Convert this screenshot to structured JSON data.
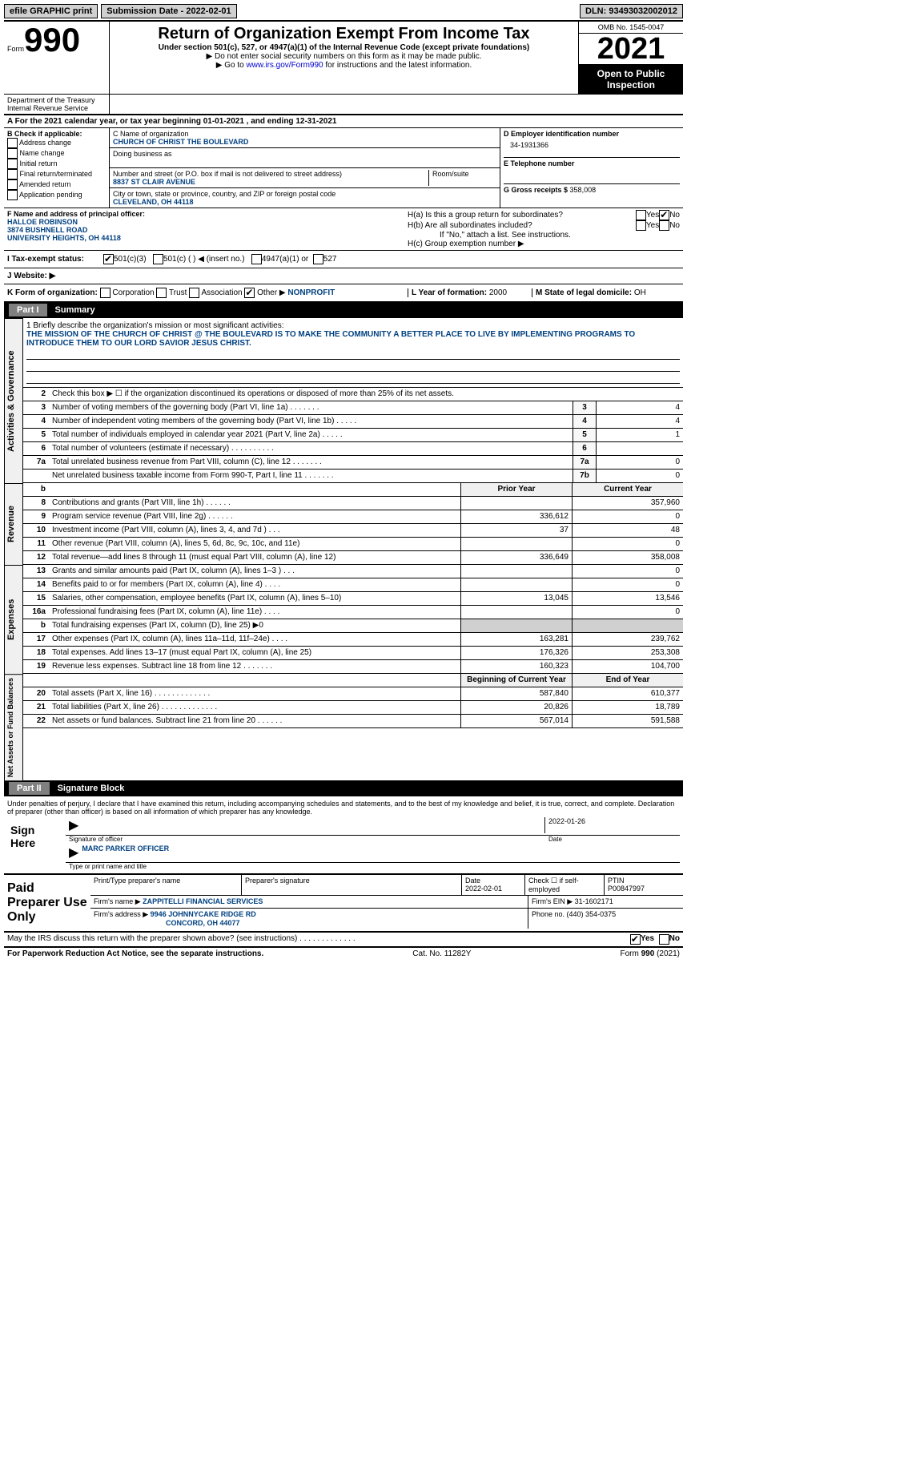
{
  "topbar": {
    "efile": "efile GRAPHIC print",
    "submission_label": "Submission Date - ",
    "submission_date": "2022-02-01",
    "dln_label": "DLN: ",
    "dln": "93493032002012"
  },
  "header": {
    "form_label": "Form",
    "form_number": "990",
    "title": "Return of Organization Exempt From Income Tax",
    "subtitle1": "Under section 501(c), 527, or 4947(a)(1) of the Internal Revenue Code (except private foundations)",
    "subtitle2": "▶ Do not enter social security numbers on this form as it may be made public.",
    "goto": "▶ Go to ",
    "goto_link": "www.irs.gov/Form990",
    "goto_rest": " for instructions and the latest information.",
    "omb": "OMB No. 1545-0047",
    "year": "2021",
    "open_public": "Open to Public Inspection",
    "dept": "Department of the Treasury\nInternal Revenue Service"
  },
  "lineA": "A For the 2021 calendar year, or tax year beginning 01-01-2021    , and ending 12-31-2021",
  "B": {
    "header": "B Check if applicable:",
    "opts": [
      "Address change",
      "Name change",
      "Initial return",
      "Final return/terminated",
      "Amended return",
      "Application pending"
    ]
  },
  "C": {
    "name_label": "C Name of organization",
    "name": "CHURCH OF CHRIST THE BOULEVARD",
    "dba_label": "Doing business as",
    "street_label": "Number and street (or P.O. box if mail is not delivered to street address)",
    "room_label": "Room/suite",
    "street": "8837 ST CLAIR AVENUE",
    "city_label": "City or town, state or province, country, and ZIP or foreign postal code",
    "city": "CLEVELAND, OH  44118"
  },
  "D": {
    "ein_label": "D Employer identification number",
    "ein": "34-1931366",
    "phone_label": "E Telephone number",
    "gross_label": "G Gross receipts $ ",
    "gross": "358,008"
  },
  "F": {
    "label": "F  Name and address of principal officer:",
    "name": "HALLOE ROBINSON",
    "addr1": "3874 BUSHNELL ROAD",
    "addr2": "UNIVERSITY HEIGHTS, OH  44118"
  },
  "H": {
    "a": "H(a)  Is this a group return for subordinates?",
    "b": "H(b)  Are all subordinates included?",
    "note": "If \"No,\" attach a list. See instructions.",
    "c": "H(c)  Group exemption number ▶",
    "yes": "Yes",
    "no": "No"
  },
  "I": {
    "label": "I    Tax-exempt status:",
    "opt1": "501(c)(3)",
    "opt2": "501(c) (   ) ◀ (insert no.)",
    "opt3": "4947(a)(1) or",
    "opt4": "527"
  },
  "J": {
    "label": "J   Website: ▶"
  },
  "K": {
    "label": "K Form of organization:",
    "opts": [
      "Corporation",
      "Trust",
      "Association",
      "Other ▶"
    ],
    "other_val": "NONPROFIT",
    "L": "L Year of formation: ",
    "L_val": "2000",
    "M": "M State of legal domicile: ",
    "M_val": "OH"
  },
  "part1": {
    "label": "Part I",
    "title": "Summary"
  },
  "summary": {
    "line1_label": "1   Briefly describe the organization's mission or most significant activities:",
    "mission": "THE MISSION OF THE CHURCH OF CHRIST @ THE BOULEVARD IS TO MAKE THE COMMUNITY A BETTER PLACE TO LIVE BY IMPLEMENTING PROGRAMS TO INTRODUCE THEM TO OUR LORD SAVIOR JESUS CHRIST.",
    "line2": "Check this box ▶ ☐  if the organization discontinued its operations or disposed of more than 25% of its net assets.",
    "rows_gov": [
      {
        "n": "3",
        "d": "Number of voting members of the governing body (Part VI, line 1a)   .    .    .    .    .    .    .",
        "b": "3",
        "v": "4"
      },
      {
        "n": "4",
        "d": "Number of independent voting members of the governing body (Part VI, line 1b)   .    .    .    .    .",
        "b": "4",
        "v": "4"
      },
      {
        "n": "5",
        "d": "Total number of individuals employed in calendar year 2021 (Part V, line 2a)   .    .    .    .    .",
        "b": "5",
        "v": "1"
      },
      {
        "n": "6",
        "d": "Total number of volunteers (estimate if necessary)    .    .    .    .    .    .    .    .    .    .",
        "b": "6",
        "v": ""
      },
      {
        "n": "7a",
        "d": "Total unrelated business revenue from Part VIII, column (C), line 12   .    .    .    .    .    .    .",
        "b": "7a",
        "v": "0"
      },
      {
        "n": "",
        "d": "Net unrelated business taxable income from Form 990-T, Part I, line 11   .    .    .    .    .    .    .",
        "b": "7b",
        "v": "0"
      }
    ],
    "prior_header": "Prior Year",
    "current_header": "Current Year",
    "rows_rev": [
      {
        "n": "8",
        "d": "Contributions and grants (Part VIII, line 1h)    .    .    .    .    .    .",
        "p": "",
        "c": "357,960"
      },
      {
        "n": "9",
        "d": "Program service revenue (Part VIII, line 2g)    .    .    .    .    .    .",
        "p": "336,612",
        "c": "0"
      },
      {
        "n": "10",
        "d": "Investment income (Part VIII, column (A), lines 3, 4, and 7d )    .    .    .",
        "p": "37",
        "c": "48"
      },
      {
        "n": "11",
        "d": "Other revenue (Part VIII, column (A), lines 5, 6d, 8c, 9c, 10c, and 11e)",
        "p": "",
        "c": "0"
      },
      {
        "n": "12",
        "d": "Total revenue—add lines 8 through 11 (must equal Part VIII, column (A), line 12)",
        "p": "336,649",
        "c": "358,008"
      }
    ],
    "rows_exp": [
      {
        "n": "13",
        "d": "Grants and similar amounts paid (Part IX, column (A), lines 1–3 )   .    .    .",
        "p": "",
        "c": "0"
      },
      {
        "n": "14",
        "d": "Benefits paid to or for members (Part IX, column (A), line 4)   .    .    .    .",
        "p": "",
        "c": "0"
      },
      {
        "n": "15",
        "d": "Salaries, other compensation, employee benefits (Part IX, column (A), lines 5–10)",
        "p": "13,045",
        "c": "13,546"
      },
      {
        "n": "16a",
        "d": "Professional fundraising fees (Part IX, column (A), line 11e)   .    .    .    .",
        "p": "",
        "c": "0"
      },
      {
        "n": "b",
        "d": "Total fundraising expenses (Part IX, column (D), line 25) ▶0",
        "p": "shaded",
        "c": "shaded"
      },
      {
        "n": "17",
        "d": "Other expenses (Part IX, column (A), lines 11a–11d, 11f–24e)   .    .    .    .",
        "p": "163,281",
        "c": "239,762"
      },
      {
        "n": "18",
        "d": "Total expenses. Add lines 13–17 (must equal Part IX, column (A), line 25)",
        "p": "176,326",
        "c": "253,308"
      },
      {
        "n": "19",
        "d": "Revenue less expenses. Subtract line 18 from line 12   .    .    .    .    .    .    .",
        "p": "160,323",
        "c": "104,700"
      }
    ],
    "begin_header": "Beginning of Current Year",
    "end_header": "End of Year",
    "rows_net": [
      {
        "n": "20",
        "d": "Total assets (Part X, line 16)   .    .    .    .    .    .    .    .    .    .    .    .    .",
        "p": "587,840",
        "c": "610,377"
      },
      {
        "n": "21",
        "d": "Total liabilities (Part X, line 26)   .    .    .    .    .    .    .    .    .    .    .    .    .",
        "p": "20,826",
        "c": "18,789"
      },
      {
        "n": "22",
        "d": "Net assets or fund balances. Subtract line 21 from line 20   .    .    .    .    .    .",
        "p": "567,014",
        "c": "591,588"
      }
    ]
  },
  "part2": {
    "label": "Part II",
    "title": "Signature Block"
  },
  "sig": {
    "penalty": "Under penalties of perjury, I declare that I have examined this return, including accompanying schedules and statements, and to the best of my knowledge and belief, it is true, correct, and complete. Declaration of preparer (other than officer) is based on all information of which preparer has any knowledge.",
    "sign_here": "Sign Here",
    "sig_officer": "Signature of officer",
    "date_label": "Date",
    "date": "2022-01-26",
    "name": "MARC PARKER  OFFICER",
    "type_name": "Type or print name and title"
  },
  "paid": {
    "title": "Paid Preparer Use Only",
    "print_name": "Print/Type preparer's name",
    "prep_sig": "Preparer's signature",
    "date_label": "Date",
    "date": "2022-02-01",
    "check_self": "Check ☐ if self-employed",
    "ptin_label": "PTIN",
    "ptin": "P00847997",
    "firm_name_label": "Firm's name     ▶",
    "firm_name": "ZAPPITELLI FINANCIAL SERVICES",
    "firm_ein_label": "Firm's EIN ▶",
    "firm_ein": "31-1602171",
    "firm_addr_label": "Firm's address ▶",
    "firm_addr1": "9946 JOHNNYCAKE RIDGE RD",
    "firm_addr2": "CONCORD, OH  44077",
    "phone_label": "Phone no. ",
    "phone": "(440) 354-0375"
  },
  "footer": {
    "may_irs": "May the IRS discuss this return with the preparer shown above? (see instructions)    .    .    .    .    .    .    .    .    .    .    .    .    .",
    "yes": "Yes",
    "no": "No",
    "paperwork": "For Paperwork Reduction Act Notice, see the separate instructions.",
    "cat": "Cat. No. 11282Y",
    "form": "Form ",
    "form_num": "990",
    "form_year": " (2021)"
  },
  "side_labels": {
    "gov": "Activities & Governance",
    "rev": "Revenue",
    "exp": "Expenses",
    "net": "Net Assets or Fund Balances"
  }
}
